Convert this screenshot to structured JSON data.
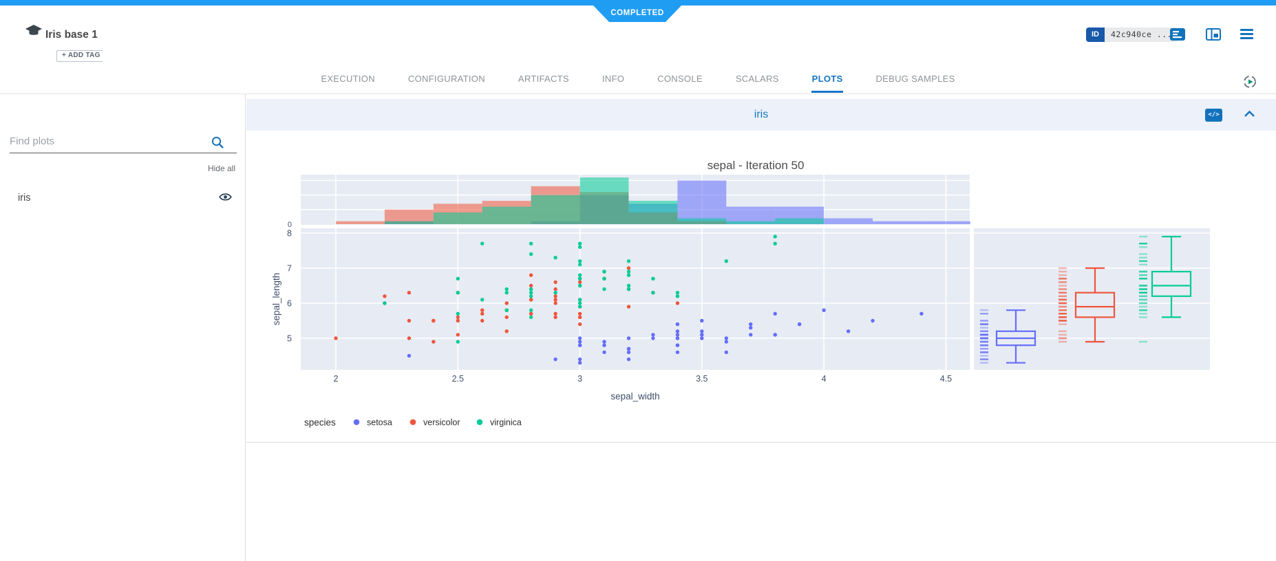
{
  "status_banner": {
    "label": "COMPLETED"
  },
  "header": {
    "title": "Iris base 1",
    "add_tag_label": "+ ADD TAG",
    "id_label": "ID",
    "id_value": "42c940ce ...",
    "accent_color": "#1f9df3",
    "icons": [
      "experiment-logo-icon",
      "details-icon",
      "split-panel-icon",
      "menu-icon"
    ]
  },
  "tabs": {
    "items": [
      "EXECUTION",
      "CONFIGURATION",
      "ARTIFACTS",
      "INFO",
      "CONSOLE",
      "SCALARS",
      "PLOTS",
      "DEBUG SAMPLES"
    ],
    "active": "PLOTS",
    "active_color": "#1474c4",
    "right_icon": "auto-refresh-icon"
  },
  "sidebar": {
    "search_placeholder": "Find plots",
    "search_icon": "search-icon",
    "hide_all_label": "Hide all",
    "items": [
      {
        "label": "iris",
        "visible": true,
        "icon": "eye-icon"
      }
    ]
  },
  "plot_card": {
    "title": "iris",
    "icons": [
      "embed-code-icon",
      "collapse-chevron-icon"
    ]
  },
  "chart_data": {
    "type": "scatter",
    "subtype": "scatter-with-marginal-histogram-and-boxplots",
    "title": "sepal - Iteration 50",
    "xlabel": "sepal_width",
    "ylabel": "sepal_length",
    "xlim": [
      1.85,
      4.6
    ],
    "ylim": [
      4.1,
      8.14
    ],
    "xticks": [
      2,
      2.5,
      3,
      3.5,
      4,
      4.5
    ],
    "yticks": [
      5,
      6,
      7,
      8
    ],
    "grid": true,
    "panel_bg": "#e7ebf4",
    "legend_title": "species",
    "legend_position": "bottom-left",
    "series": [
      {
        "name": "setosa",
        "color": "#636EFA",
        "points": [
          [
            3.5,
            5.1
          ],
          [
            3.0,
            4.9
          ],
          [
            3.2,
            4.7
          ],
          [
            3.1,
            4.6
          ],
          [
            3.6,
            5.0
          ],
          [
            3.9,
            5.4
          ],
          [
            3.4,
            4.6
          ],
          [
            3.4,
            5.0
          ],
          [
            2.9,
            4.4
          ],
          [
            3.1,
            4.9
          ],
          [
            3.7,
            5.4
          ],
          [
            3.4,
            4.8
          ],
          [
            3.0,
            4.8
          ],
          [
            3.0,
            4.3
          ],
          [
            4.0,
            5.8
          ],
          [
            4.4,
            5.7
          ],
          [
            3.9,
            5.4
          ],
          [
            3.5,
            5.1
          ],
          [
            3.8,
            5.7
          ],
          [
            3.8,
            5.1
          ],
          [
            3.4,
            5.4
          ],
          [
            3.7,
            5.1
          ],
          [
            3.6,
            4.6
          ],
          [
            3.3,
            5.1
          ],
          [
            3.4,
            4.8
          ],
          [
            3.0,
            5.0
          ],
          [
            3.4,
            5.0
          ],
          [
            3.5,
            5.2
          ],
          [
            3.4,
            5.2
          ],
          [
            3.2,
            4.7
          ],
          [
            3.1,
            4.8
          ],
          [
            3.4,
            5.4
          ],
          [
            4.1,
            5.2
          ],
          [
            4.2,
            5.5
          ],
          [
            3.1,
            4.9
          ],
          [
            3.2,
            5.0
          ],
          [
            3.5,
            5.5
          ],
          [
            3.6,
            4.9
          ],
          [
            3.0,
            4.4
          ],
          [
            3.4,
            5.1
          ],
          [
            3.5,
            5.0
          ],
          [
            2.3,
            4.5
          ],
          [
            3.2,
            4.4
          ],
          [
            3.5,
            5.0
          ],
          [
            3.8,
            5.1
          ],
          [
            3.0,
            4.8
          ],
          [
            3.8,
            5.1
          ],
          [
            3.2,
            4.6
          ],
          [
            3.7,
            5.3
          ],
          [
            3.3,
            5.0
          ]
        ]
      },
      {
        "name": "versicolor",
        "color": "#EF553B",
        "points": [
          [
            3.2,
            7.0
          ],
          [
            3.2,
            6.4
          ],
          [
            3.1,
            6.9
          ],
          [
            2.3,
            5.5
          ],
          [
            2.8,
            6.5
          ],
          [
            2.8,
            5.7
          ],
          [
            3.3,
            6.3
          ],
          [
            2.4,
            4.9
          ],
          [
            2.9,
            6.6
          ],
          [
            2.7,
            5.2
          ],
          [
            2.0,
            5.0
          ],
          [
            3.0,
            5.9
          ],
          [
            2.2,
            6.0
          ],
          [
            2.9,
            6.1
          ],
          [
            2.9,
            5.6
          ],
          [
            3.1,
            6.7
          ],
          [
            3.0,
            5.6
          ],
          [
            2.7,
            5.8
          ],
          [
            2.2,
            6.2
          ],
          [
            2.5,
            5.6
          ],
          [
            3.2,
            5.9
          ],
          [
            2.8,
            6.1
          ],
          [
            2.5,
            6.3
          ],
          [
            2.8,
            6.1
          ],
          [
            2.9,
            6.4
          ],
          [
            3.0,
            6.6
          ],
          [
            2.8,
            6.8
          ],
          [
            3.0,
            6.7
          ],
          [
            2.9,
            6.0
          ],
          [
            2.6,
            5.7
          ],
          [
            2.4,
            5.5
          ],
          [
            2.4,
            5.5
          ],
          [
            2.7,
            5.8
          ],
          [
            2.7,
            6.0
          ],
          [
            3.0,
            5.4
          ],
          [
            3.4,
            6.0
          ],
          [
            3.1,
            6.7
          ],
          [
            2.3,
            6.3
          ],
          [
            3.0,
            5.6
          ],
          [
            2.5,
            5.5
          ],
          [
            2.6,
            5.5
          ],
          [
            3.0,
            6.1
          ],
          [
            2.6,
            5.8
          ],
          [
            2.3,
            5.0
          ],
          [
            2.7,
            5.6
          ],
          [
            3.0,
            5.7
          ],
          [
            2.9,
            5.7
          ],
          [
            2.9,
            6.2
          ],
          [
            2.5,
            5.1
          ],
          [
            2.8,
            5.7
          ]
        ]
      },
      {
        "name": "virginica",
        "color": "#00CC96",
        "points": [
          [
            3.3,
            6.3
          ],
          [
            2.7,
            5.8
          ],
          [
            3.0,
            7.1
          ],
          [
            2.9,
            6.3
          ],
          [
            3.0,
            6.5
          ],
          [
            3.0,
            7.6
          ],
          [
            2.5,
            4.9
          ],
          [
            2.9,
            7.3
          ],
          [
            2.5,
            6.7
          ],
          [
            3.6,
            7.2
          ],
          [
            3.2,
            6.5
          ],
          [
            2.7,
            6.4
          ],
          [
            3.0,
            6.8
          ],
          [
            2.5,
            5.7
          ],
          [
            2.8,
            5.8
          ],
          [
            3.2,
            6.4
          ],
          [
            3.0,
            6.5
          ],
          [
            3.8,
            7.7
          ],
          [
            2.6,
            7.7
          ],
          [
            2.2,
            6.0
          ],
          [
            3.2,
            6.9
          ],
          [
            2.8,
            5.6
          ],
          [
            2.8,
            7.7
          ],
          [
            2.7,
            6.3
          ],
          [
            3.3,
            6.7
          ],
          [
            3.2,
            7.2
          ],
          [
            2.8,
            6.2
          ],
          [
            3.0,
            6.1
          ],
          [
            2.8,
            6.4
          ],
          [
            3.0,
            7.2
          ],
          [
            2.8,
            7.4
          ],
          [
            3.8,
            7.9
          ],
          [
            2.8,
            6.4
          ],
          [
            2.8,
            6.3
          ],
          [
            2.6,
            6.1
          ],
          [
            3.0,
            7.7
          ],
          [
            3.4,
            6.3
          ],
          [
            3.1,
            6.4
          ],
          [
            3.0,
            6.0
          ],
          [
            3.1,
            6.9
          ],
          [
            3.1,
            6.7
          ],
          [
            3.1,
            6.9
          ],
          [
            2.7,
            5.8
          ],
          [
            3.2,
            6.8
          ],
          [
            3.3,
            6.7
          ],
          [
            3.0,
            6.7
          ],
          [
            2.5,
            6.3
          ],
          [
            3.0,
            6.5
          ],
          [
            3.4,
            6.2
          ],
          [
            3.0,
            5.9
          ]
        ]
      }
    ],
    "marginal_top_histogram": {
      "bin_start": 2.0,
      "bin_width": 0.2,
      "count_max": 17,
      "y_tick": "0",
      "opacity": 0.55
    },
    "marginal_right_box": {
      "rug": true,
      "boxes": [
        {
          "name": "setosa",
          "min": 4.3,
          "q1": 4.8,
          "median": 5.0,
          "q3": 5.2,
          "max": 5.8,
          "outliers": []
        },
        {
          "name": "versicolor",
          "min": 4.9,
          "q1": 5.6,
          "median": 5.9,
          "q3": 6.3,
          "max": 7.0,
          "outliers": []
        },
        {
          "name": "virginica",
          "min": 5.6,
          "q1": 6.2,
          "median": 6.5,
          "q3": 6.9,
          "max": 7.9,
          "outliers": [
            4.9
          ]
        }
      ]
    }
  }
}
